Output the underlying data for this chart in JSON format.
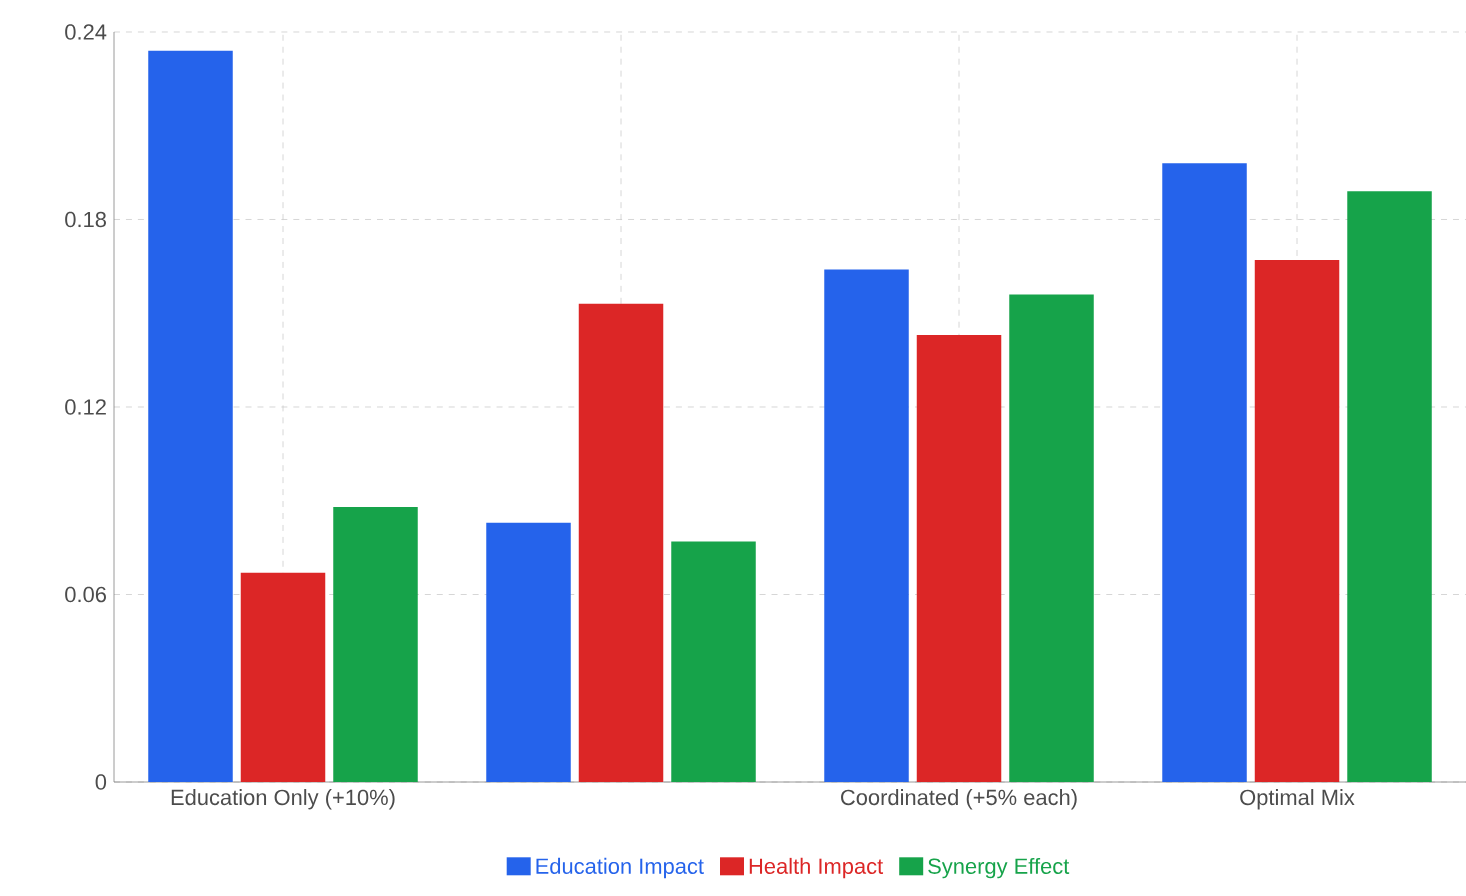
{
  "chart_data": {
    "type": "bar",
    "categories": [
      "Education Only (+10%)",
      null,
      "Coordinated (+5% each)",
      "Optimal Mix"
    ],
    "series": [
      {
        "name": "Education Impact",
        "color": "#2563eb",
        "values": [
          0.234,
          0.083,
          0.164,
          0.198
        ]
      },
      {
        "name": "Health Impact",
        "color": "#dc2626",
        "values": [
          0.067,
          0.153,
          0.143,
          0.167
        ]
      },
      {
        "name": "Synergy Effect",
        "color": "#16a34a",
        "values": [
          0.088,
          0.077,
          0.156,
          0.189
        ]
      }
    ],
    "ylim": [
      0,
      0.24
    ],
    "yticks": [
      0,
      0.06,
      0.12,
      0.18,
      0.24
    ],
    "grid": true,
    "legend": "bottom"
  }
}
